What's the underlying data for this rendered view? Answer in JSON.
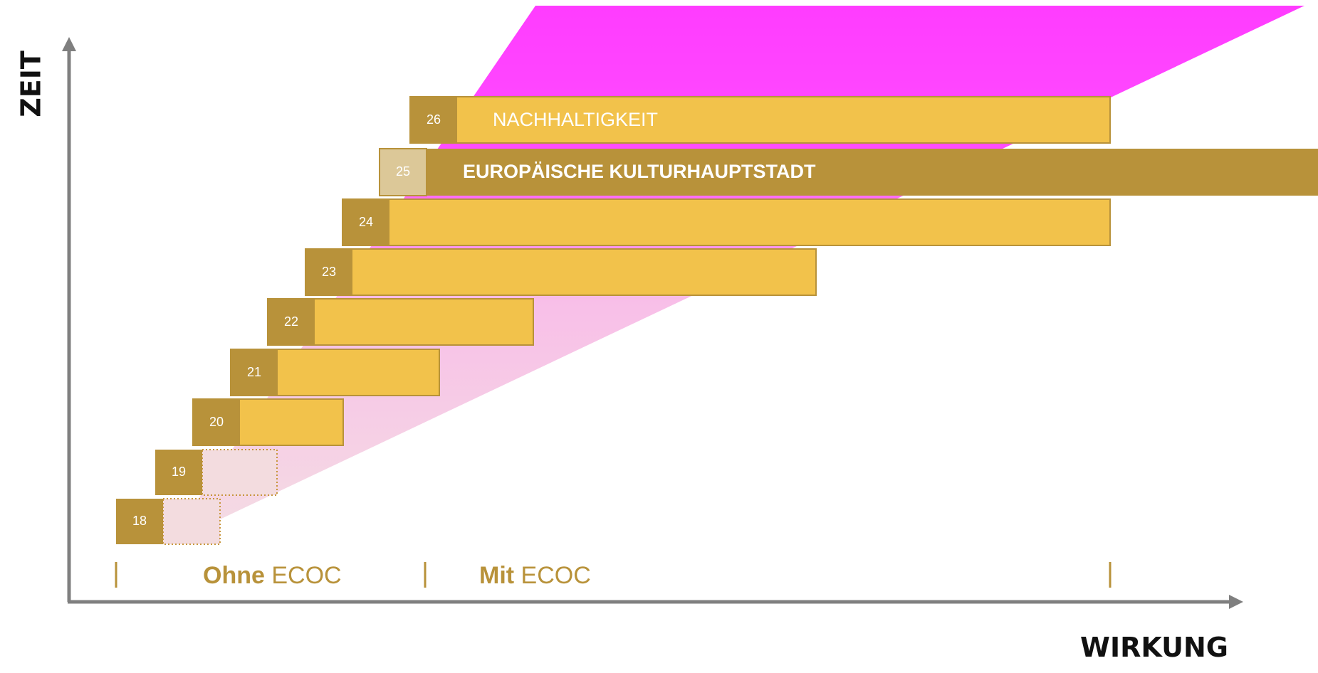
{
  "axes": {
    "y_title": "ZEIT",
    "x_title": "WIRKUNG"
  },
  "phases": [
    {
      "bold": "Ohne",
      "rest": " ECOC"
    },
    {
      "bold": "Mit",
      "rest": " ECOC"
    }
  ],
  "rows": [
    {
      "year": "18",
      "label": "",
      "style": "dotted"
    },
    {
      "year": "19",
      "label": "",
      "style": "dotted"
    },
    {
      "year": "20",
      "label": "",
      "style": "solid"
    },
    {
      "year": "21",
      "label": "",
      "style": "solid"
    },
    {
      "year": "22",
      "label": "",
      "style": "solid"
    },
    {
      "year": "23",
      "label": "",
      "style": "solid"
    },
    {
      "year": "24",
      "label": "",
      "style": "solid"
    },
    {
      "year": "25",
      "label": "EUROPÄISCHE KULTURHAUPTSTADT",
      "style": "highlight"
    },
    {
      "year": "26",
      "label": "NACHHALTIGKEIT",
      "style": "solid"
    }
  ],
  "colors": {
    "bar": "#f2c24b",
    "year_box": "#b8923a",
    "highlight_bar": "#b8923a",
    "highlight_year_box": "#dcc898",
    "magenta": "#ff3cff",
    "axis": "#7f7f7f",
    "phase_text": "#b8923a"
  }
}
